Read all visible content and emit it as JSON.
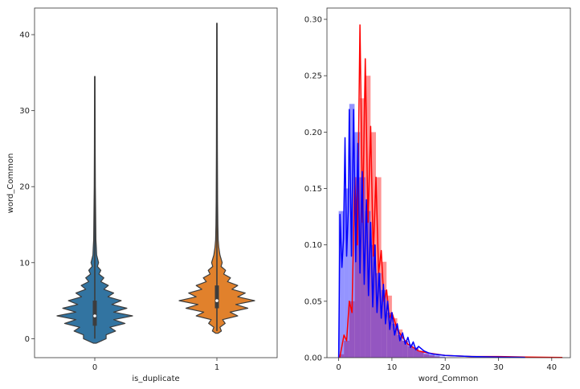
{
  "chart_data": [
    {
      "type": "violin",
      "xlabel": "is_duplicate",
      "ylabel": "word_Common",
      "categories": [
        "0",
        "1"
      ],
      "ylim": [
        -2.5,
        43.5
      ],
      "yticks": [
        0,
        10,
        20,
        30,
        40
      ],
      "colors": [
        "#3274a1",
        "#e1812c"
      ],
      "series": [
        {
          "category": "0",
          "min": 0,
          "max": 34.5,
          "q1": 1.7,
          "median": 3.0,
          "q3": 5.0,
          "density": [
            [
              -0.6,
              0.04
            ],
            [
              0,
              0.3
            ],
            [
              0.5,
              0.3
            ],
            [
              1,
              0.55
            ],
            [
              1.5,
              0.4
            ],
            [
              2,
              0.8
            ],
            [
              2.5,
              0.5
            ],
            [
              3,
              1.0
            ],
            [
              3.5,
              0.5
            ],
            [
              4,
              0.85
            ],
            [
              4.5,
              0.45
            ],
            [
              5,
              0.7
            ],
            [
              5.5,
              0.35
            ],
            [
              6,
              0.5
            ],
            [
              6.5,
              0.24
            ],
            [
              7,
              0.36
            ],
            [
              7.5,
              0.16
            ],
            [
              8,
              0.24
            ],
            [
              8.5,
              0.11
            ],
            [
              9,
              0.16
            ],
            [
              9.5,
              0.07
            ],
            [
              10,
              0.1
            ],
            [
              11,
              0.05
            ],
            [
              12,
              0.04
            ],
            [
              13,
              0.03
            ],
            [
              15,
              0.025
            ],
            [
              18,
              0.02
            ],
            [
              20,
              0.015
            ],
            [
              25,
              0.01
            ],
            [
              30,
              0.008
            ],
            [
              34.5,
              0.005
            ]
          ]
        },
        {
          "category": "1",
          "min": 1,
          "max": 41.5,
          "q1": 4.0,
          "median": 5.0,
          "q3": 7.0,
          "density": [
            [
              0.7,
              0.03
            ],
            [
              1,
              0.12
            ],
            [
              1.5,
              0.08
            ],
            [
              2,
              0.22
            ],
            [
              2.5,
              0.15
            ],
            [
              3,
              0.55
            ],
            [
              3.5,
              0.35
            ],
            [
              4,
              0.82
            ],
            [
              4.5,
              0.5
            ],
            [
              5,
              1.0
            ],
            [
              5.5,
              0.55
            ],
            [
              6,
              0.75
            ],
            [
              6.5,
              0.4
            ],
            [
              7,
              0.55
            ],
            [
              7.5,
              0.28
            ],
            [
              8,
              0.36
            ],
            [
              8.5,
              0.18
            ],
            [
              9,
              0.23
            ],
            [
              9.5,
              0.11
            ],
            [
              10,
              0.14
            ],
            [
              11,
              0.08
            ],
            [
              12,
              0.05
            ],
            [
              13,
              0.035
            ],
            [
              15,
              0.025
            ],
            [
              18,
              0.02
            ],
            [
              25,
              0.012
            ],
            [
              30,
              0.01
            ],
            [
              35,
              0.008
            ],
            [
              41.5,
              0.005
            ]
          ]
        }
      ]
    },
    {
      "type": "histogram-kde",
      "xlabel": "word_Common",
      "xlim": [
        -2.2,
        43.5
      ],
      "ylim": [
        0,
        0.31
      ],
      "xticks": [
        0,
        10,
        20,
        30,
        40
      ],
      "yticks": [
        "0.00",
        "0.05",
        "0.10",
        "0.15",
        "0.20",
        "0.25",
        "0.30"
      ],
      "series": [
        {
          "color": "#ff0000",
          "bars": [
            [
              0,
              0.003
            ],
            [
              1,
              0.015
            ],
            [
              2,
              0.05
            ],
            [
              3,
              0.16
            ],
            [
              4,
              0.23
            ],
            [
              5,
              0.25
            ],
            [
              6,
              0.2
            ],
            [
              7,
              0.16
            ],
            [
              8,
              0.085
            ],
            [
              9,
              0.055
            ],
            [
              10,
              0.035
            ],
            [
              11,
              0.025
            ],
            [
              12,
              0.015
            ],
            [
              13,
              0.01
            ],
            [
              14,
              0.008
            ],
            [
              15,
              0.005
            ],
            [
              16,
              0.003
            ],
            [
              17,
              0.002
            ],
            [
              18,
              0.001
            ]
          ],
          "kde": [
            [
              0.2,
              0
            ],
            [
              0.6,
              0.01
            ],
            [
              1,
              0.02
            ],
            [
              1.5,
              0.015
            ],
            [
              2,
              0.05
            ],
            [
              2.5,
              0.04
            ],
            [
              3,
              0.16
            ],
            [
              3.5,
              0.1
            ],
            [
              4,
              0.295
            ],
            [
              4.5,
              0.12
            ],
            [
              5,
              0.265
            ],
            [
              5.5,
              0.12
            ],
            [
              6,
              0.205
            ],
            [
              6.5,
              0.09
            ],
            [
              7,
              0.16
            ],
            [
              7.5,
              0.075
            ],
            [
              8,
              0.095
            ],
            [
              8.5,
              0.05
            ],
            [
              9,
              0.06
            ],
            [
              9.5,
              0.035
            ],
            [
              10,
              0.04
            ],
            [
              11,
              0.025
            ],
            [
              12,
              0.018
            ],
            [
              13,
              0.012
            ],
            [
              14,
              0.009
            ],
            [
              15,
              0.006
            ],
            [
              17,
              0.004
            ],
            [
              20,
              0.002
            ],
            [
              25,
              0.001
            ],
            [
              30,
              0.001
            ],
            [
              35,
              0.0005
            ],
            [
              40,
              0.0003
            ],
            [
              42,
              0.0002
            ]
          ]
        },
        {
          "color": "#0000ff",
          "bars": [
            [
              0,
              0.13
            ],
            [
              1,
              0.15
            ],
            [
              2,
              0.225
            ],
            [
              3,
              0.2
            ],
            [
              4,
              0.16
            ],
            [
              5,
              0.13
            ],
            [
              6,
              0.1
            ],
            [
              7,
              0.075
            ],
            [
              8,
              0.06
            ],
            [
              9,
              0.04
            ],
            [
              10,
              0.03
            ],
            [
              11,
              0.02
            ],
            [
              12,
              0.015
            ],
            [
              13,
              0.012
            ],
            [
              14,
              0.009
            ],
            [
              15,
              0.006
            ],
            [
              16,
              0.004
            ],
            [
              17,
              0.003
            ],
            [
              18,
              0.002
            ],
            [
              19,
              0.001
            ]
          ],
          "kde": [
            [
              0,
              0
            ],
            [
              0.25,
              0.127
            ],
            [
              0.6,
              0.08
            ],
            [
              0.9,
              0.105
            ],
            [
              1.2,
              0.195
            ],
            [
              1.5,
              0.09
            ],
            [
              1.8,
              0.13
            ],
            [
              2,
              0.22
            ],
            [
              2.4,
              0.09
            ],
            [
              2.8,
              0.22
            ],
            [
              3.2,
              0.085
            ],
            [
              3.6,
              0.19
            ],
            [
              4,
              0.075
            ],
            [
              4.4,
              0.165
            ],
            [
              4.8,
              0.065
            ],
            [
              5.2,
              0.14
            ],
            [
              5.6,
              0.055
            ],
            [
              6,
              0.12
            ],
            [
              6.4,
              0.045
            ],
            [
              6.8,
              0.1
            ],
            [
              7.2,
              0.04
            ],
            [
              7.6,
              0.075
            ],
            [
              8,
              0.035
            ],
            [
              8.4,
              0.065
            ],
            [
              8.8,
              0.03
            ],
            [
              9.2,
              0.05
            ],
            [
              9.6,
              0.025
            ],
            [
              10,
              0.04
            ],
            [
              10.5,
              0.02
            ],
            [
              11,
              0.03
            ],
            [
              11.5,
              0.015
            ],
            [
              12,
              0.022
            ],
            [
              12.5,
              0.012
            ],
            [
              13,
              0.018
            ],
            [
              13.5,
              0.009
            ],
            [
              14,
              0.014
            ],
            [
              14.5,
              0.007
            ],
            [
              15,
              0.01
            ],
            [
              16,
              0.006
            ],
            [
              17,
              0.004
            ],
            [
              18,
              0.003
            ],
            [
              20,
              0.002
            ],
            [
              25,
              0.001
            ],
            [
              30,
              0.0005
            ],
            [
              35,
              0.0003
            ]
          ]
        }
      ]
    }
  ]
}
